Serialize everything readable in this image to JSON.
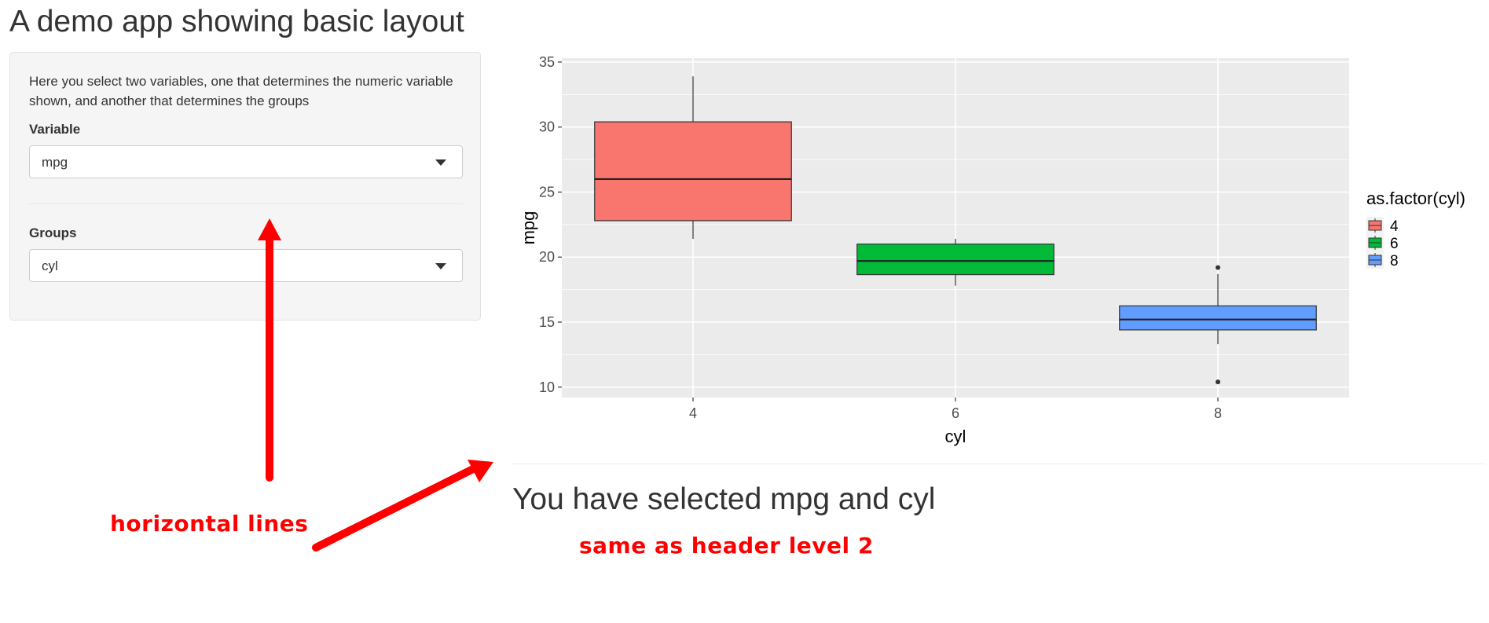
{
  "page": {
    "title": "A demo app showing basic layout"
  },
  "sidebar": {
    "intro": "Here you select two variables, one that determines the numeric variable shown, and another that determines the groups",
    "variable": {
      "label": "Variable",
      "value": "mpg"
    },
    "groups": {
      "label": "Groups",
      "value": "cyl"
    }
  },
  "main": {
    "selection_text": "You have selected mpg and cyl"
  },
  "annotations": {
    "horizontal_lines": "horizontal lines",
    "header_note": "same as header level 2"
  },
  "colors": {
    "cyl4": "#f8766d",
    "cyl6": "#00ba38",
    "cyl8": "#619cff",
    "panel": "#ebebeb",
    "annotation": "#ff0000"
  },
  "icons": {
    "dropdown": "chevron-down-icon"
  },
  "chart_data": {
    "type": "boxplot",
    "xlabel": "cyl",
    "ylabel": "mpg",
    "categories": [
      "4",
      "6",
      "8"
    ],
    "ylim": [
      9.2,
      35.3
    ],
    "yticks": [
      10,
      15,
      20,
      25,
      30,
      35
    ],
    "legend_title": "as.factor(cyl)",
    "legend_position": "right",
    "grid": true,
    "boxes": [
      {
        "x": "4",
        "lower_whisker": 21.4,
        "q1": 22.8,
        "median": 26.0,
        "q3": 30.4,
        "upper_whisker": 33.9,
        "outliers": []
      },
      {
        "x": "6",
        "lower_whisker": 17.8,
        "q1": 18.65,
        "median": 19.7,
        "q3": 21.0,
        "upper_whisker": 21.4,
        "outliers": []
      },
      {
        "x": "8",
        "lower_whisker": 13.3,
        "q1": 14.4,
        "median": 15.2,
        "q3": 16.25,
        "upper_whisker": 18.7,
        "outliers": [
          10.4,
          19.2
        ]
      }
    ]
  }
}
